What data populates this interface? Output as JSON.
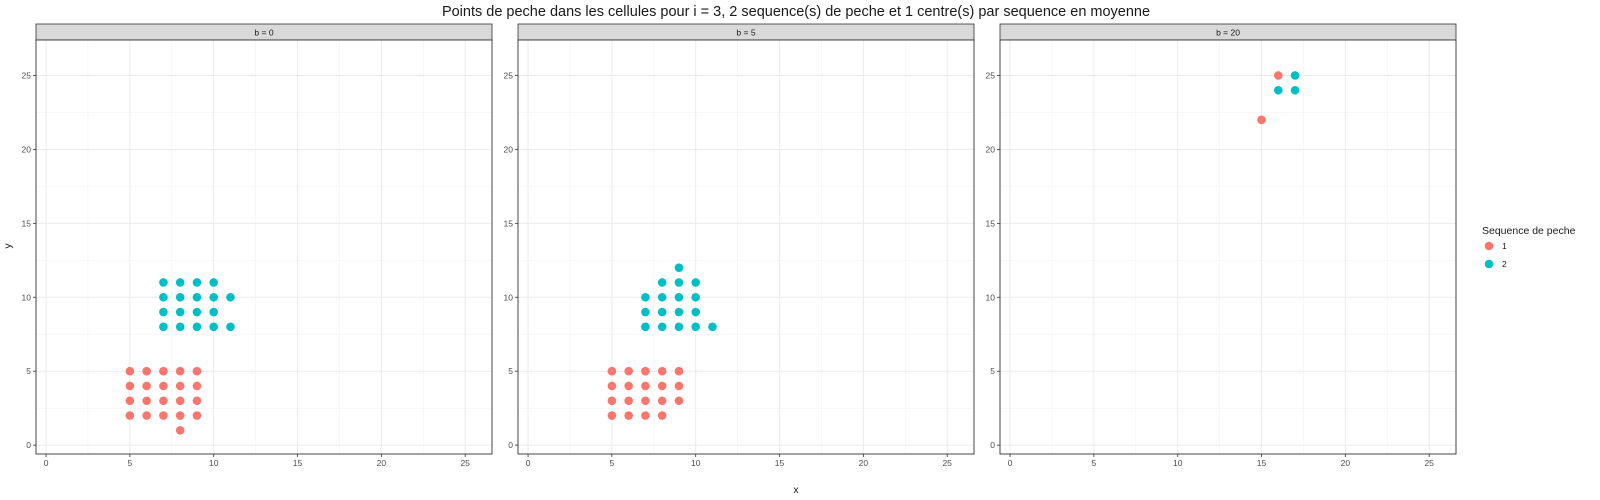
{
  "chart_data": {
    "type": "scatter",
    "title": "Points de peche dans les cellules pour i = 3, 2 sequence(s) de peche et 1 centre(s) par sequence en moyenne",
    "xlabel": "x",
    "ylabel": "y",
    "xlim": [
      -0.6,
      26.6
    ],
    "ylim": [
      -0.6,
      27.4
    ],
    "ticks": [
      0,
      5,
      10,
      15,
      20,
      25
    ],
    "ticks_text": [
      "0",
      "5",
      "10",
      "15",
      "20",
      "25"
    ],
    "grid": true,
    "legend": {
      "title": "Sequence de peche",
      "position": "right",
      "items": [
        {
          "label": "1",
          "color": "#F8766D"
        },
        {
          "label": "2",
          "color": "#00BFC4"
        }
      ]
    },
    "panels": [
      {
        "strip": "b = 0",
        "series": [
          {
            "name": "1",
            "color": "#F8766D",
            "points": [
              [
                5,
                2
              ],
              [
                5,
                3
              ],
              [
                5,
                4
              ],
              [
                5,
                5
              ],
              [
                6,
                2
              ],
              [
                6,
                3
              ],
              [
                6,
                4
              ],
              [
                6,
                5
              ],
              [
                7,
                2
              ],
              [
                7,
                3
              ],
              [
                7,
                4
              ],
              [
                7,
                5
              ],
              [
                8,
                1
              ],
              [
                8,
                2
              ],
              [
                8,
                3
              ],
              [
                8,
                4
              ],
              [
                8,
                5
              ],
              [
                9,
                2
              ],
              [
                9,
                3
              ],
              [
                9,
                4
              ],
              [
                9,
                5
              ]
            ]
          },
          {
            "name": "2",
            "color": "#00BFC4",
            "points": [
              [
                7,
                8
              ],
              [
                7,
                9
              ],
              [
                7,
                10
              ],
              [
                7,
                11
              ],
              [
                8,
                8
              ],
              [
                8,
                9
              ],
              [
                8,
                10
              ],
              [
                8,
                11
              ],
              [
                9,
                8
              ],
              [
                9,
                9
              ],
              [
                9,
                10
              ],
              [
                9,
                11
              ],
              [
                10,
                8
              ],
              [
                10,
                9
              ],
              [
                10,
                10
              ],
              [
                10,
                11
              ],
              [
                11,
                8
              ],
              [
                11,
                10
              ]
            ]
          }
        ]
      },
      {
        "strip": "b = 5",
        "series": [
          {
            "name": "1",
            "color": "#F8766D",
            "points": [
              [
                5,
                2
              ],
              [
                5,
                3
              ],
              [
                5,
                4
              ],
              [
                5,
                5
              ],
              [
                6,
                2
              ],
              [
                6,
                3
              ],
              [
                6,
                4
              ],
              [
                6,
                5
              ],
              [
                7,
                2
              ],
              [
                7,
                3
              ],
              [
                7,
                4
              ],
              [
                7,
                5
              ],
              [
                8,
                2
              ],
              [
                8,
                3
              ],
              [
                8,
                4
              ],
              [
                8,
                5
              ],
              [
                9,
                3
              ],
              [
                9,
                4
              ],
              [
                9,
                5
              ]
            ]
          },
          {
            "name": "2",
            "color": "#00BFC4",
            "points": [
              [
                7,
                8
              ],
              [
                7,
                9
              ],
              [
                7,
                10
              ],
              [
                8,
                8
              ],
              [
                8,
                9
              ],
              [
                8,
                10
              ],
              [
                8,
                11
              ],
              [
                9,
                8
              ],
              [
                9,
                9
              ],
              [
                9,
                10
              ],
              [
                9,
                11
              ],
              [
                9,
                12
              ],
              [
                10,
                8
              ],
              [
                10,
                9
              ],
              [
                10,
                10
              ],
              [
                10,
                11
              ],
              [
                11,
                8
              ]
            ]
          }
        ]
      },
      {
        "strip": "b = 20",
        "series": [
          {
            "name": "1",
            "color": "#F8766D",
            "points": [
              [
                15,
                22
              ],
              [
                16,
                25
              ]
            ]
          },
          {
            "name": "2",
            "color": "#00BFC4",
            "points": [
              [
                16,
                24
              ],
              [
                17,
                24
              ],
              [
                17,
                25
              ]
            ]
          }
        ]
      }
    ]
  }
}
